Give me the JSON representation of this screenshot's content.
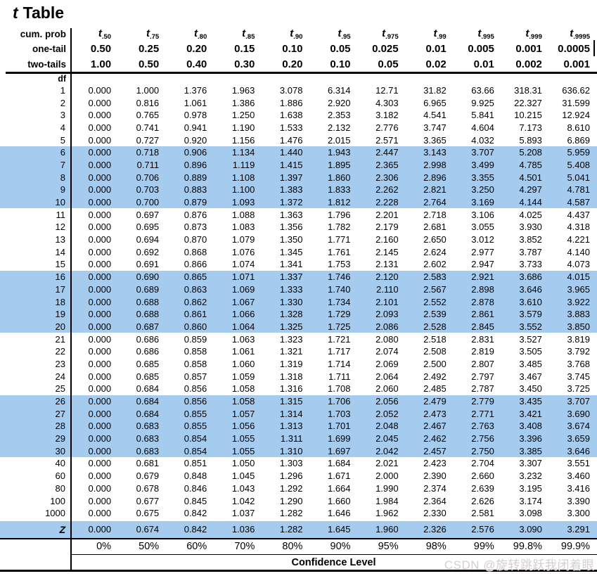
{
  "title": {
    "t_letter": "t",
    "rest": "Table"
  },
  "colors": {
    "highlight": "#A5CBEF",
    "rule": "#000000",
    "watermark_color": "#D5CECC"
  },
  "header": {
    "cum_prob_label": "cum. prob",
    "one_tail_label": "one-tail",
    "two_tails_label": "two-tails",
    "df_label": "df",
    "t_symbol": "t",
    "t_subscripts": [
      ".50",
      ".75",
      ".80",
      ".85",
      ".90",
      ".95",
      ".975",
      ".99",
      ".995",
      ".999",
      ".9995"
    ],
    "one_tail_values": [
      "0.50",
      "0.25",
      "0.20",
      "0.15",
      "0.10",
      "0.05",
      "0.025",
      "0.01",
      "0.005",
      "0.001",
      "0.0005"
    ],
    "two_tails_values": [
      "1.00",
      "0.50",
      "0.40",
      "0.30",
      "0.20",
      "0.10",
      "0.05",
      "0.02",
      "0.01",
      "0.002",
      "0.001"
    ]
  },
  "table": {
    "rows": [
      {
        "df": "1",
        "highlight": false,
        "values": [
          "0.000",
          "1.000",
          "1.376",
          "1.963",
          "3.078",
          "6.314",
          "12.71",
          "31.82",
          "63.66",
          "318.31",
          "636.62"
        ]
      },
      {
        "df": "2",
        "highlight": false,
        "values": [
          "0.000",
          "0.816",
          "1.061",
          "1.386",
          "1.886",
          "2.920",
          "4.303",
          "6.965",
          "9.925",
          "22.327",
          "31.599"
        ]
      },
      {
        "df": "3",
        "highlight": false,
        "values": [
          "0.000",
          "0.765",
          "0.978",
          "1.250",
          "1.638",
          "2.353",
          "3.182",
          "4.541",
          "5.841",
          "10.215",
          "12.924"
        ]
      },
      {
        "df": "4",
        "highlight": false,
        "values": [
          "0.000",
          "0.741",
          "0.941",
          "1.190",
          "1.533",
          "2.132",
          "2.776",
          "3.747",
          "4.604",
          "7.173",
          "8.610"
        ]
      },
      {
        "df": "5",
        "highlight": false,
        "values": [
          "0.000",
          "0.727",
          "0.920",
          "1.156",
          "1.476",
          "2.015",
          "2.571",
          "3.365",
          "4.032",
          "5.893",
          "6.869"
        ]
      },
      {
        "df": "6",
        "highlight": true,
        "values": [
          "0.000",
          "0.718",
          "0.906",
          "1.134",
          "1.440",
          "1.943",
          "2.447",
          "3.143",
          "3.707",
          "5.208",
          "5.959"
        ]
      },
      {
        "df": "7",
        "highlight": true,
        "values": [
          "0.000",
          "0.711",
          "0.896",
          "1.119",
          "1.415",
          "1.895",
          "2.365",
          "2.998",
          "3.499",
          "4.785",
          "5.408"
        ]
      },
      {
        "df": "8",
        "highlight": true,
        "values": [
          "0.000",
          "0.706",
          "0.889",
          "1.108",
          "1.397",
          "1.860",
          "2.306",
          "2.896",
          "3.355",
          "4.501",
          "5.041"
        ]
      },
      {
        "df": "9",
        "highlight": true,
        "values": [
          "0.000",
          "0.703",
          "0.883",
          "1.100",
          "1.383",
          "1.833",
          "2.262",
          "2.821",
          "3.250",
          "4.297",
          "4.781"
        ]
      },
      {
        "df": "10",
        "highlight": true,
        "values": [
          "0.000",
          "0.700",
          "0.879",
          "1.093",
          "1.372",
          "1.812",
          "2.228",
          "2.764",
          "3.169",
          "4.144",
          "4.587"
        ]
      },
      {
        "df": "11",
        "highlight": false,
        "values": [
          "0.000",
          "0.697",
          "0.876",
          "1.088",
          "1.363",
          "1.796",
          "2.201",
          "2.718",
          "3.106",
          "4.025",
          "4.437"
        ]
      },
      {
        "df": "12",
        "highlight": false,
        "values": [
          "0.000",
          "0.695",
          "0.873",
          "1.083",
          "1.356",
          "1.782",
          "2.179",
          "2.681",
          "3.055",
          "3.930",
          "4.318"
        ]
      },
      {
        "df": "13",
        "highlight": false,
        "values": [
          "0.000",
          "0.694",
          "0.870",
          "1.079",
          "1.350",
          "1.771",
          "2.160",
          "2.650",
          "3.012",
          "3.852",
          "4.221"
        ]
      },
      {
        "df": "14",
        "highlight": false,
        "values": [
          "0.000",
          "0.692",
          "0.868",
          "1.076",
          "1.345",
          "1.761",
          "2.145",
          "2.624",
          "2.977",
          "3.787",
          "4.140"
        ]
      },
      {
        "df": "15",
        "highlight": false,
        "values": [
          "0.000",
          "0.691",
          "0.866",
          "1.074",
          "1.341",
          "1.753",
          "2.131",
          "2.602",
          "2.947",
          "3.733",
          "4.073"
        ]
      },
      {
        "df": "16",
        "highlight": true,
        "values": [
          "0.000",
          "0.690",
          "0.865",
          "1.071",
          "1.337",
          "1.746",
          "2.120",
          "2.583",
          "2.921",
          "3.686",
          "4.015"
        ]
      },
      {
        "df": "17",
        "highlight": true,
        "values": [
          "0.000",
          "0.689",
          "0.863",
          "1.069",
          "1.333",
          "1.740",
          "2.110",
          "2.567",
          "2.898",
          "3.646",
          "3.965"
        ]
      },
      {
        "df": "18",
        "highlight": true,
        "values": [
          "0.000",
          "0.688",
          "0.862",
          "1.067",
          "1.330",
          "1.734",
          "2.101",
          "2.552",
          "2.878",
          "3.610",
          "3.922"
        ]
      },
      {
        "df": "19",
        "highlight": true,
        "values": [
          "0.000",
          "0.688",
          "0.861",
          "1.066",
          "1.328",
          "1.729",
          "2.093",
          "2.539",
          "2.861",
          "3.579",
          "3.883"
        ]
      },
      {
        "df": "20",
        "highlight": true,
        "values": [
          "0.000",
          "0.687",
          "0.860",
          "1.064",
          "1.325",
          "1.725",
          "2.086",
          "2.528",
          "2.845",
          "3.552",
          "3.850"
        ]
      },
      {
        "df": "21",
        "highlight": false,
        "values": [
          "0.000",
          "0.686",
          "0.859",
          "1.063",
          "1.323",
          "1.721",
          "2.080",
          "2.518",
          "2.831",
          "3.527",
          "3.819"
        ]
      },
      {
        "df": "22",
        "highlight": false,
        "values": [
          "0.000",
          "0.686",
          "0.858",
          "1.061",
          "1.321",
          "1.717",
          "2.074",
          "2.508",
          "2.819",
          "3.505",
          "3.792"
        ]
      },
      {
        "df": "23",
        "highlight": false,
        "values": [
          "0.000",
          "0.685",
          "0.858",
          "1.060",
          "1.319",
          "1.714",
          "2.069",
          "2.500",
          "2.807",
          "3.485",
          "3.768"
        ]
      },
      {
        "df": "24",
        "highlight": false,
        "values": [
          "0.000",
          "0.685",
          "0.857",
          "1.059",
          "1.318",
          "1.711",
          "2.064",
          "2.492",
          "2.797",
          "3.467",
          "3.745"
        ]
      },
      {
        "df": "25",
        "highlight": false,
        "values": [
          "0.000",
          "0.684",
          "0.856",
          "1.058",
          "1.316",
          "1.708",
          "2.060",
          "2.485",
          "2.787",
          "3.450",
          "3.725"
        ]
      },
      {
        "df": "26",
        "highlight": true,
        "values": [
          "0.000",
          "0.684",
          "0.856",
          "1.058",
          "1.315",
          "1.706",
          "2.056",
          "2.479",
          "2.779",
          "3.435",
          "3.707"
        ]
      },
      {
        "df": "27",
        "highlight": true,
        "values": [
          "0.000",
          "0.684",
          "0.855",
          "1.057",
          "1.314",
          "1.703",
          "2.052",
          "2.473",
          "2.771",
          "3.421",
          "3.690"
        ]
      },
      {
        "df": "28",
        "highlight": true,
        "values": [
          "0.000",
          "0.683",
          "0.855",
          "1.056",
          "1.313",
          "1.701",
          "2.048",
          "2.467",
          "2.763",
          "3.408",
          "3.674"
        ]
      },
      {
        "df": "29",
        "highlight": true,
        "values": [
          "0.000",
          "0.683",
          "0.854",
          "1.055",
          "1.311",
          "1.699",
          "2.045",
          "2.462",
          "2.756",
          "3.396",
          "3.659"
        ]
      },
      {
        "df": "30",
        "highlight": true,
        "values": [
          "0.000",
          "0.683",
          "0.854",
          "1.055",
          "1.310",
          "1.697",
          "2.042",
          "2.457",
          "2.750",
          "3.385",
          "3.646"
        ]
      },
      {
        "df": "40",
        "highlight": false,
        "values": [
          "0.000",
          "0.681",
          "0.851",
          "1.050",
          "1.303",
          "1.684",
          "2.021",
          "2.423",
          "2.704",
          "3.307",
          "3.551"
        ]
      },
      {
        "df": "60",
        "highlight": false,
        "values": [
          "0.000",
          "0.679",
          "0.848",
          "1.045",
          "1.296",
          "1.671",
          "2.000",
          "2.390",
          "2.660",
          "3.232",
          "3.460"
        ]
      },
      {
        "df": "80",
        "highlight": false,
        "values": [
          "0.000",
          "0.678",
          "0.846",
          "1.043",
          "1.292",
          "1.664",
          "1.990",
          "2.374",
          "2.639",
          "3.195",
          "3.416"
        ]
      },
      {
        "df": "100",
        "highlight": false,
        "values": [
          "0.000",
          "0.677",
          "0.845",
          "1.042",
          "1.290",
          "1.660",
          "1.984",
          "2.364",
          "2.626",
          "3.174",
          "3.390"
        ]
      },
      {
        "df": "1000",
        "highlight": false,
        "values": [
          "0.000",
          "0.675",
          "0.842",
          "1.037",
          "1.282",
          "1.646",
          "1.962",
          "2.330",
          "2.581",
          "3.098",
          "3.300"
        ]
      }
    ],
    "z_row": {
      "df": "Z",
      "highlight": true,
      "values": [
        "0.000",
        "0.674",
        "0.842",
        "1.036",
        "1.282",
        "1.645",
        "1.960",
        "2.326",
        "2.576",
        "3.090",
        "3.291"
      ]
    }
  },
  "footer": {
    "confidence_values": [
      "0%",
      "50%",
      "60%",
      "70%",
      "80%",
      "90%",
      "95%",
      "98%",
      "99%",
      "99.8%",
      "99.9%"
    ],
    "confidence_label": "Confidence Level"
  },
  "watermark": "CSDN @旋转跳跃我闭着眼"
}
